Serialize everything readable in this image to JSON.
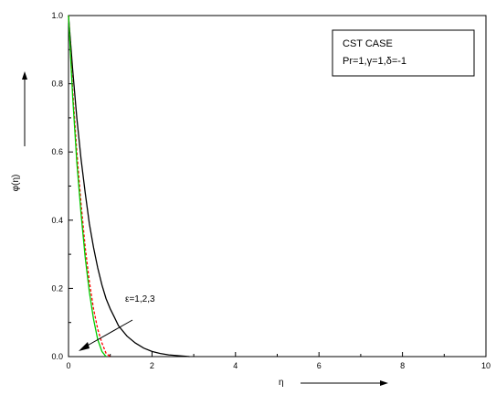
{
  "chart_data": {
    "type": "line",
    "title": "",
    "xlabel": "η",
    "ylabel": "φ(η)",
    "xlim": [
      0,
      10
    ],
    "ylim": [
      0,
      1.0
    ],
    "xticks": [
      "0",
      "2",
      "4",
      "6",
      "8",
      "10"
    ],
    "yticks": [
      "0.0",
      "0.2",
      "0.4",
      "0.6",
      "0.8",
      "1.0"
    ],
    "grid": false,
    "legend": {
      "position": "top-right",
      "line1": "CST CASE",
      "line2": "Pr=1,γ=1,δ=-1"
    },
    "annotation": {
      "text": "ε=1,2,3"
    },
    "series": [
      {
        "color": "#000000",
        "x": [
          0,
          0.1,
          0.2,
          0.3,
          0.4,
          0.5,
          0.6,
          0.7,
          0.8,
          0.9,
          1.0,
          1.1,
          1.2,
          1.4,
          1.6,
          1.8,
          2.0,
          2.2,
          2.4,
          2.6,
          2.8,
          2.9
        ],
        "y": [
          1.0,
          0.84,
          0.7,
          0.58,
          0.48,
          0.39,
          0.32,
          0.26,
          0.21,
          0.17,
          0.14,
          0.115,
          0.09,
          0.06,
          0.04,
          0.025,
          0.015,
          0.009,
          0.005,
          0.003,
          0.001,
          0.0
        ]
      },
      {
        "color": "#ff0000",
        "dashed": true,
        "x": [
          0,
          0.1,
          0.2,
          0.3,
          0.4,
          0.5,
          0.6,
          0.7,
          0.8,
          0.9,
          1.0
        ],
        "y": [
          1.0,
          0.78,
          0.6,
          0.45,
          0.32,
          0.22,
          0.14,
          0.08,
          0.04,
          0.01,
          0.0
        ]
      },
      {
        "color": "#00cc00",
        "x": [
          0,
          0.1,
          0.2,
          0.3,
          0.4,
          0.5,
          0.6,
          0.7,
          0.8,
          0.9
        ],
        "y": [
          1.0,
          0.76,
          0.57,
          0.42,
          0.29,
          0.19,
          0.11,
          0.05,
          0.015,
          0.0
        ]
      }
    ]
  }
}
